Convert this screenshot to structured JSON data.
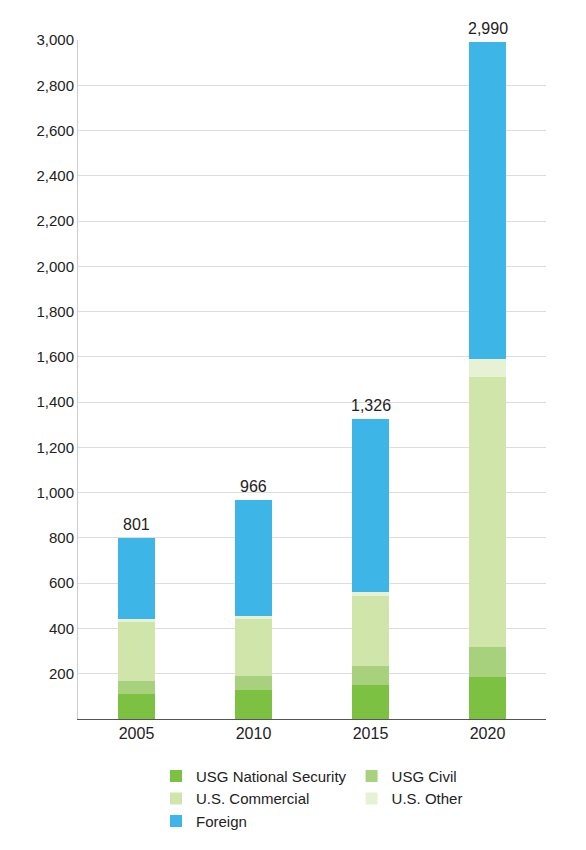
{
  "chart_data": {
    "type": "bar",
    "stacked": true,
    "grid": true,
    "legend": "bottom",
    "categories": [
      "2005",
      "2010",
      "2015",
      "2020"
    ],
    "series": [
      {
        "name": "USG National Security",
        "color": "#7cc142",
        "values": [
          110,
          130,
          150,
          185
        ]
      },
      {
        "name": "USG Civil",
        "color": "#a8d17d",
        "values": [
          60,
          60,
          85,
          135
        ]
      },
      {
        "name": "U.S. Commercial",
        "color": "#cfe5aa",
        "values": [
          260,
          250,
          310,
          1190
        ]
      },
      {
        "name": "U.S. Other",
        "color": "#e7f2d5",
        "values": [
          10,
          15,
          15,
          80
        ]
      },
      {
        "name": "Foreign",
        "color": "#3db5e6",
        "values": [
          361,
          511,
          766,
          1400
        ]
      }
    ],
    "totals": [
      801,
      966,
      1326,
      2990
    ],
    "total_labels": [
      "801",
      "966",
      "1,326",
      "2,990"
    ],
    "ylim": [
      0,
      3000
    ],
    "yticks": [
      200,
      400,
      600,
      800,
      {
        "value": 1000,
        "label": "1,000"
      },
      {
        "value": 1200,
        "label": "1,200"
      },
      {
        "value": 1400,
        "label": "1,400"
      },
      {
        "value": 1600,
        "label": "1,600"
      },
      {
        "value": 1800,
        "label": "1,800"
      },
      {
        "value": 2000,
        "label": "2,000"
      },
      {
        "value": 2200,
        "label": "2,200"
      },
      {
        "value": 2400,
        "label": "2,400"
      },
      {
        "value": 2600,
        "label": "2,600"
      },
      {
        "value": 2800,
        "label": "2,800"
      },
      {
        "value": 3000,
        "label": "3,000"
      }
    ]
  }
}
